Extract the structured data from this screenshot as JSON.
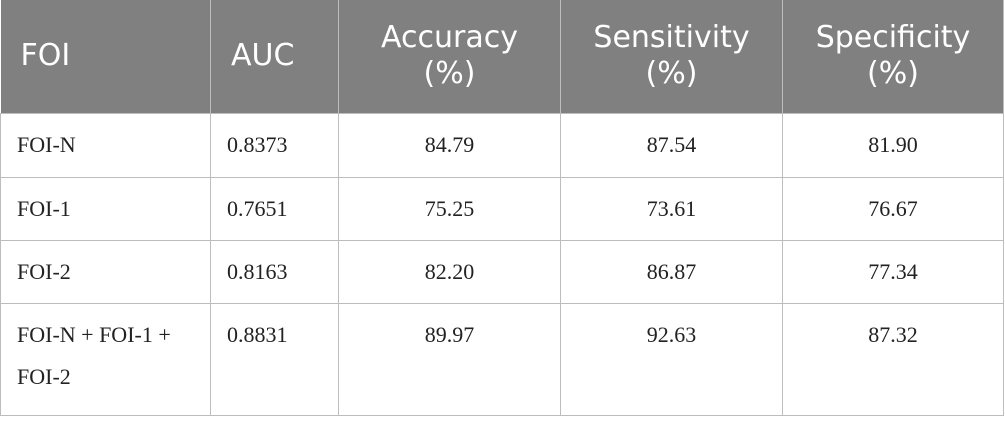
{
  "table": {
    "header": [
      "FOI",
      "AUC",
      "Accuracy (%)",
      "Sensitivity (%)",
      "Specificity (%)"
    ],
    "rows": [
      [
        "FOI-N",
        "0.8373",
        "84.79",
        "87.54",
        "81.90"
      ],
      [
        "FOI-1",
        "0.7651",
        "75.25",
        "73.61",
        "76.67"
      ],
      [
        "FOI-2",
        "0.8163",
        "82.20",
        "86.87",
        "77.34"
      ],
      [
        "FOI-N + FOI-1 + FOI-2",
        "0.8831",
        "89.97",
        "92.63",
        "87.32"
      ]
    ]
  }
}
